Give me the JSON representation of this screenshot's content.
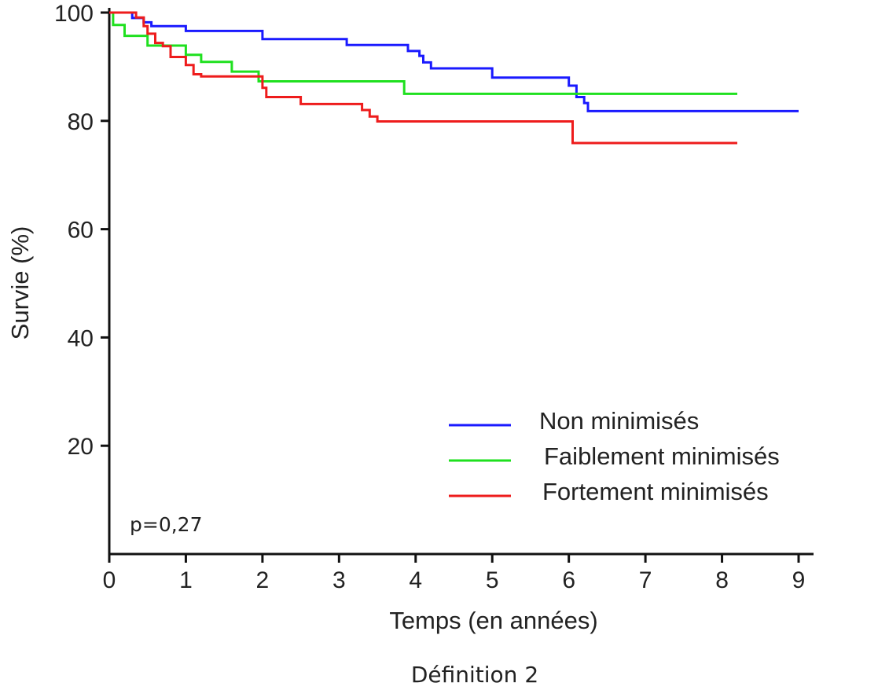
{
  "chart_data": {
    "type": "line",
    "step": true,
    "xlabel": "Temps (en années)",
    "ylabel": "Survie (%)",
    "xlim": [
      0,
      9
    ],
    "ylim": [
      0,
      100
    ],
    "xticks": [
      0,
      1,
      2,
      3,
      4,
      5,
      6,
      7,
      8,
      9
    ],
    "yticks": [
      20,
      40,
      60,
      80,
      100
    ],
    "grid": false,
    "legend_position": "bottom-right",
    "annotation": "p=0,27",
    "caption": "Définition 2",
    "series": [
      {
        "name": "Non minimisés",
        "color": "#1a1aff",
        "points": [
          [
            0,
            100
          ],
          [
            0.3,
            99
          ],
          [
            0.45,
            98.2
          ],
          [
            0.55,
            97.5
          ],
          [
            1.0,
            96.6
          ],
          [
            2.0,
            95.1
          ],
          [
            2.1,
            95.1
          ],
          [
            3.1,
            94.0
          ],
          [
            3.9,
            92.9
          ],
          [
            4.05,
            92.0
          ],
          [
            4.1,
            90.8
          ],
          [
            4.2,
            89.7
          ],
          [
            5.0,
            88.0
          ],
          [
            5.8,
            88.0
          ],
          [
            6.0,
            86.5
          ],
          [
            6.1,
            84.4
          ],
          [
            6.2,
            83.3
          ],
          [
            6.25,
            81.8
          ],
          [
            9.0,
            81.8
          ]
        ]
      },
      {
        "name": "Faiblement minimisés",
        "color": "#1fe01f",
        "points": [
          [
            0,
            100
          ],
          [
            0.05,
            97.7
          ],
          [
            0.2,
            95.7
          ],
          [
            0.5,
            93.9
          ],
          [
            0.7,
            93.9
          ],
          [
            1.0,
            92.2
          ],
          [
            1.2,
            90.9
          ],
          [
            1.6,
            89.1
          ],
          [
            1.95,
            87.3
          ],
          [
            3.8,
            87.3
          ],
          [
            3.85,
            85.0
          ],
          [
            8.2,
            85.0
          ]
        ]
      },
      {
        "name": "Fortement minimisés",
        "color": "#ee1c1c",
        "points": [
          [
            0,
            100
          ],
          [
            0.25,
            100
          ],
          [
            0.35,
            99.1
          ],
          [
            0.45,
            97.5
          ],
          [
            0.5,
            96.1
          ],
          [
            0.6,
            94.4
          ],
          [
            0.7,
            93.8
          ],
          [
            0.8,
            91.8
          ],
          [
            1.0,
            90.3
          ],
          [
            1.1,
            88.6
          ],
          [
            1.2,
            88.2
          ],
          [
            1.95,
            88.2
          ],
          [
            2.0,
            86.1
          ],
          [
            2.05,
            84.4
          ],
          [
            2.5,
            83.1
          ],
          [
            3.3,
            82.0
          ],
          [
            3.4,
            80.8
          ],
          [
            3.5,
            79.9
          ],
          [
            6.0,
            79.9
          ],
          [
            6.05,
            75.9
          ],
          [
            8.2,
            75.9
          ]
        ]
      }
    ]
  }
}
